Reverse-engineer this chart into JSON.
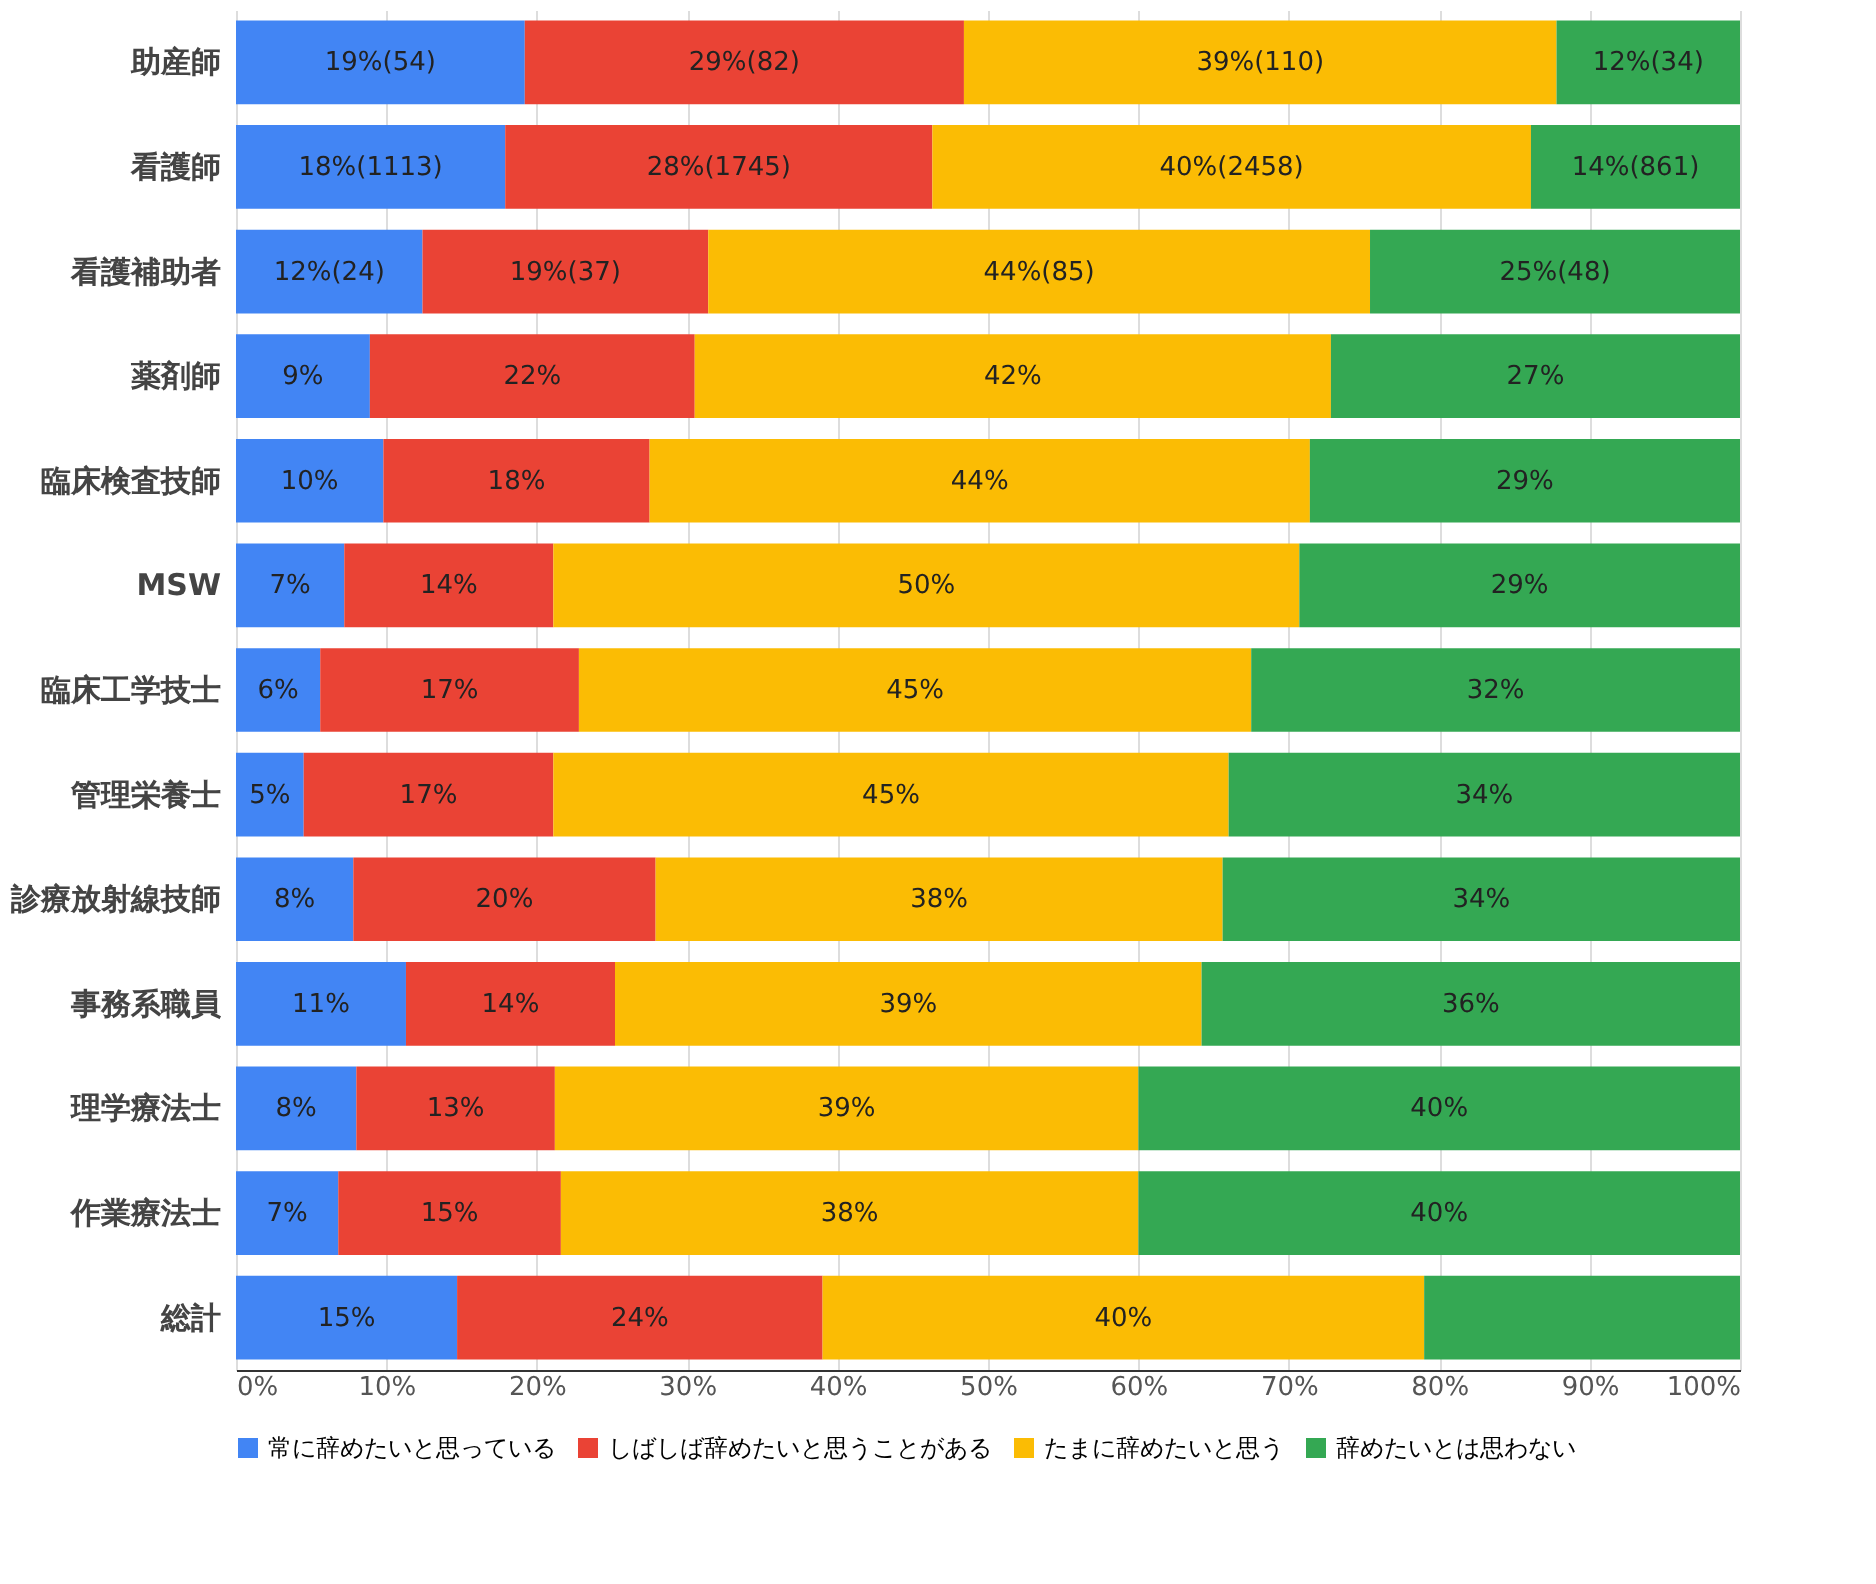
{
  "chart_data": {
    "type": "bar",
    "orientation": "horizontal",
    "stacked": true,
    "categories": [
      "助産師",
      "看護師",
      "看護補助者",
      "薬剤師",
      "臨床検査技師",
      "MSW",
      "臨床工学技士",
      "管理栄養士",
      "診療放射線技師",
      "事務系職員",
      "理学療法士",
      "作業療法士",
      "総計"
    ],
    "series": [
      {
        "name": "常に辞めたいと思っている",
        "color": "#4285f4",
        "values": [
          19.2,
          17.9,
          12.4,
          8.9,
          9.8,
          7.2,
          5.6,
          4.5,
          7.8,
          11.3,
          8.0,
          6.8,
          14.7
        ],
        "value_labels": [
          "19%(54)",
          "18%(1113)",
          "12%(24)",
          "9%",
          "10%",
          "7%",
          "6%",
          "5%",
          "8%",
          "11%",
          "8%",
          "7%",
          "15%"
        ]
      },
      {
        "name": "しばしば辞めたいと思うことがある",
        "color": "#ea4335",
        "values": [
          29.2,
          28.4,
          19.0,
          21.6,
          17.7,
          13.9,
          17.2,
          16.6,
          20.1,
          13.9,
          13.2,
          14.8,
          24.3
        ],
        "value_labels": [
          "29%(82)",
          "28%(1745)",
          "19%(37)",
          "22%",
          "18%",
          "14%",
          "17%",
          "17%",
          "20%",
          "14%",
          "13%",
          "15%",
          "24%"
        ]
      },
      {
        "name": "たまに辞めたいと思う",
        "color": "#fbbc04",
        "values": [
          39.4,
          39.8,
          44.0,
          42.3,
          43.9,
          49.6,
          44.7,
          44.9,
          37.7,
          39.0,
          38.8,
          38.4,
          40.0
        ],
        "value_labels": [
          "39%(110)",
          "40%(2458)",
          "44%(85)",
          "42%",
          "44%",
          "50%",
          "45%",
          "45%",
          "38%",
          "39%",
          "39%",
          "38%",
          "40%"
        ]
      },
      {
        "name": "辞めたいとは思わない",
        "color": "#34a853",
        "values": [
          12.2,
          13.9,
          24.6,
          27.2,
          28.6,
          29.3,
          32.5,
          34.0,
          34.4,
          35.8,
          40.0,
          40.0,
          21.0
        ],
        "value_labels": [
          "12%(34)",
          "14%(861)",
          "25%(48)",
          "27%",
          "29%",
          "29%",
          "32%",
          "34%",
          "34%",
          "36%",
          "40%",
          "40%",
          null
        ]
      }
    ],
    "xlim": [
      0,
      100
    ],
    "xticks": [
      {
        "value": 0,
        "label": "0%"
      },
      {
        "value": 10,
        "label": "10%"
      },
      {
        "value": 20,
        "label": "20%"
      },
      {
        "value": 30,
        "label": "30%"
      },
      {
        "value": 40,
        "label": "40%"
      },
      {
        "value": 50,
        "label": "50%"
      },
      {
        "value": 60,
        "label": "60%"
      },
      {
        "value": 70,
        "label": "70%"
      },
      {
        "value": 80,
        "label": "80%"
      },
      {
        "value": 90,
        "label": "90%"
      },
      {
        "value": 100,
        "label": "100%"
      }
    ],
    "grid": "x",
    "legend": "bottom"
  }
}
